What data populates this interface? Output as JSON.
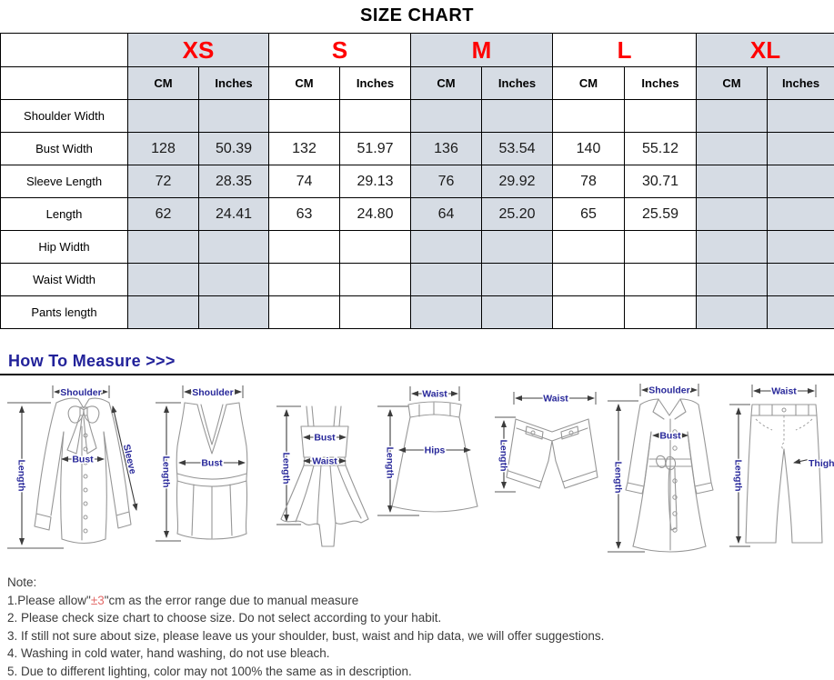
{
  "page": {
    "title": "SIZE CHART"
  },
  "size_table": {
    "sizes": [
      {
        "label": "XS",
        "shaded": true
      },
      {
        "label": "S",
        "shaded": false
      },
      {
        "label": "M",
        "shaded": true
      },
      {
        "label": "L",
        "shaded": false
      },
      {
        "label": "XL",
        "shaded": true
      }
    ],
    "unit_labels": [
      "CM",
      "Inches"
    ],
    "measurement_rows": [
      {
        "label": "Shoulder Width",
        "values": [
          "",
          "",
          "",
          "",
          "",
          "",
          "",
          "",
          "",
          ""
        ]
      },
      {
        "label": "Bust Width",
        "values": [
          "128",
          "50.39",
          "132",
          "51.97",
          "136",
          "53.54",
          "140",
          "55.12",
          "",
          ""
        ]
      },
      {
        "label": "Sleeve Length",
        "values": [
          "72",
          "28.35",
          "74",
          "29.13",
          "76",
          "29.92",
          "78",
          "30.71",
          "",
          ""
        ]
      },
      {
        "label": "Length",
        "values": [
          "62",
          "24.41",
          "63",
          "24.80",
          "64",
          "25.20",
          "65",
          "25.59",
          "",
          ""
        ]
      },
      {
        "label": "Hip Width",
        "values": [
          "",
          "",
          "",
          "",
          "",
          "",
          "",
          "",
          "",
          ""
        ]
      },
      {
        "label": "Waist Width",
        "values": [
          "",
          "",
          "",
          "",
          "",
          "",
          "",
          "",
          "",
          ""
        ]
      },
      {
        "label": "Pants length",
        "values": [
          "",
          "",
          "",
          "",
          "",
          "",
          "",
          "",
          "",
          ""
        ]
      }
    ]
  },
  "measure_guide": {
    "heading": "How To Measure >>>",
    "sketches": [
      {
        "garment": "blouse",
        "labels": {
          "shoulder": "Shoulder",
          "bust": "Bust",
          "sleeve": "Sleeve",
          "length": "Length"
        }
      },
      {
        "garment": "tank-top",
        "labels": {
          "shoulder": "Shoulder",
          "bust": "Bust",
          "length": "Length"
        }
      },
      {
        "garment": "slip-dress",
        "labels": {
          "bust": "Bust",
          "waist": "Waist",
          "length": "Length"
        }
      },
      {
        "garment": "skirt",
        "labels": {
          "waist": "Waist",
          "hips": "Hips",
          "length": "Length"
        }
      },
      {
        "garment": "shorts",
        "labels": {
          "waist": "Waist",
          "length": "Length"
        }
      },
      {
        "garment": "coat",
        "labels": {
          "shoulder": "Shoulder",
          "bust": "Bust",
          "length": "Length"
        }
      },
      {
        "garment": "pants",
        "labels": {
          "waist": "Waist",
          "thigh": "Thigh",
          "length": "Length"
        }
      }
    ]
  },
  "notes": {
    "heading": "Note:",
    "note1": {
      "prefix": "1.Please allow\"",
      "highlight": "±3",
      "suffix": "\"cm as the error range due to manual measure"
    },
    "items": [
      "2. Please check size chart to choose size. Do not select according to your habit.",
      "3. If still not sure about size, please leave us your shoulder, bust, waist and hip data, we will offer suggestions.",
      "4. Washing in cold water, hand washing, do not use bleach.",
      "5. Due to different lighting, color may not 100% the same as in description."
    ]
  },
  "colors": {
    "size_label": "#FF0000",
    "shaded_cell": "#D6DCE4",
    "heading_navy": "#22229A",
    "sketch_label_navy": "#28289A",
    "error_highlight": "#E36C6A"
  }
}
